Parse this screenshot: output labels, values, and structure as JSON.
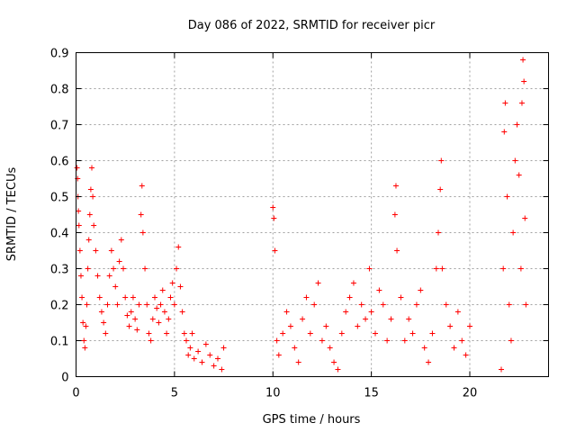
{
  "chart_data": {
    "type": "scatter",
    "title": "Day 086 of 2022, SRMTID for receiver picr",
    "xlabel": "GPS time / hours",
    "ylabel": "SRMTID / TECUs",
    "xlim": [
      0,
      24
    ],
    "ylim": [
      0,
      0.9
    ],
    "xticks": [
      0,
      5,
      10,
      15,
      20
    ],
    "xtick_labels": [
      "0",
      "5",
      "10",
      "15",
      "20"
    ],
    "yticks": [
      0,
      0.1,
      0.2,
      0.3,
      0.4,
      0.5,
      0.6,
      0.7,
      0.8,
      0.9
    ],
    "ytick_labels": [
      "0",
      "0.1",
      "0.2",
      "0.3",
      "0.4",
      "0.5",
      "0.6",
      "0.7",
      "0.8",
      "0.9"
    ],
    "grid": true,
    "marker": "+",
    "color": "#ff0000",
    "series": [
      {
        "name": "SRMTID",
        "points": [
          [
            0.05,
            0.58
          ],
          [
            0.08,
            0.55
          ],
          [
            0.1,
            0.5
          ],
          [
            0.12,
            0.46
          ],
          [
            0.15,
            0.42
          ],
          [
            0.2,
            0.35
          ],
          [
            0.25,
            0.28
          ],
          [
            0.3,
            0.22
          ],
          [
            0.35,
            0.15
          ],
          [
            0.4,
            0.1
          ],
          [
            0.45,
            0.08
          ],
          [
            0.5,
            0.14
          ],
          [
            0.55,
            0.2
          ],
          [
            0.6,
            0.3
          ],
          [
            0.65,
            0.38
          ],
          [
            0.7,
            0.45
          ],
          [
            0.75,
            0.52
          ],
          [
            0.8,
            0.58
          ],
          [
            0.85,
            0.5
          ],
          [
            0.9,
            0.42
          ],
          [
            1.0,
            0.35
          ],
          [
            1.1,
            0.28
          ],
          [
            1.2,
            0.22
          ],
          [
            1.3,
            0.18
          ],
          [
            1.4,
            0.15
          ],
          [
            1.5,
            0.12
          ],
          [
            1.6,
            0.2
          ],
          [
            1.7,
            0.28
          ],
          [
            1.8,
            0.35
          ],
          [
            1.9,
            0.3
          ],
          [
            2.0,
            0.25
          ],
          [
            2.1,
            0.2
          ],
          [
            2.2,
            0.32
          ],
          [
            2.3,
            0.38
          ],
          [
            2.4,
            0.3
          ],
          [
            2.5,
            0.22
          ],
          [
            2.6,
            0.17
          ],
          [
            2.7,
            0.14
          ],
          [
            2.8,
            0.18
          ],
          [
            2.9,
            0.22
          ],
          [
            3.0,
            0.16
          ],
          [
            3.1,
            0.13
          ],
          [
            3.2,
            0.2
          ],
          [
            3.3,
            0.45
          ],
          [
            3.35,
            0.53
          ],
          [
            3.4,
            0.4
          ],
          [
            3.5,
            0.3
          ],
          [
            3.6,
            0.2
          ],
          [
            3.7,
            0.12
          ],
          [
            3.8,
            0.1
          ],
          [
            3.9,
            0.16
          ],
          [
            4.0,
            0.22
          ],
          [
            4.1,
            0.19
          ],
          [
            4.2,
            0.15
          ],
          [
            4.3,
            0.2
          ],
          [
            4.4,
            0.24
          ],
          [
            4.5,
            0.18
          ],
          [
            4.6,
            0.12
          ],
          [
            4.7,
            0.16
          ],
          [
            4.8,
            0.22
          ],
          [
            4.9,
            0.26
          ],
          [
            5.0,
            0.2
          ],
          [
            5.1,
            0.3
          ],
          [
            5.2,
            0.36
          ],
          [
            5.3,
            0.25
          ],
          [
            5.4,
            0.18
          ],
          [
            5.5,
            0.12
          ],
          [
            5.6,
            0.1
          ],
          [
            5.7,
            0.06
          ],
          [
            5.8,
            0.08
          ],
          [
            5.9,
            0.12
          ],
          [
            6.0,
            0.05
          ],
          [
            6.2,
            0.07
          ],
          [
            6.4,
            0.04
          ],
          [
            6.6,
            0.09
          ],
          [
            6.8,
            0.06
          ],
          [
            7.0,
            0.03
          ],
          [
            7.2,
            0.05
          ],
          [
            7.4,
            0.02
          ],
          [
            7.5,
            0.08
          ],
          [
            10.0,
            0.47
          ],
          [
            10.05,
            0.44
          ],
          [
            10.1,
            0.35
          ],
          [
            10.2,
            0.1
          ],
          [
            10.3,
            0.06
          ],
          [
            10.5,
            0.12
          ],
          [
            10.7,
            0.18
          ],
          [
            10.9,
            0.14
          ],
          [
            11.1,
            0.08
          ],
          [
            11.3,
            0.04
          ],
          [
            11.5,
            0.16
          ],
          [
            11.7,
            0.22
          ],
          [
            11.9,
            0.12
          ],
          [
            12.1,
            0.2
          ],
          [
            12.3,
            0.26
          ],
          [
            12.5,
            0.1
          ],
          [
            12.7,
            0.14
          ],
          [
            12.9,
            0.08
          ],
          [
            13.1,
            0.04
          ],
          [
            13.3,
            0.02
          ],
          [
            13.5,
            0.12
          ],
          [
            13.7,
            0.18
          ],
          [
            13.9,
            0.22
          ],
          [
            14.1,
            0.26
          ],
          [
            14.3,
            0.14
          ],
          [
            14.5,
            0.2
          ],
          [
            14.7,
            0.16
          ],
          [
            14.9,
            0.3
          ],
          [
            15.0,
            0.18
          ],
          [
            15.2,
            0.12
          ],
          [
            15.4,
            0.24
          ],
          [
            15.6,
            0.2
          ],
          [
            15.8,
            0.1
          ],
          [
            16.0,
            0.16
          ],
          [
            16.2,
            0.45
          ],
          [
            16.25,
            0.53
          ],
          [
            16.3,
            0.35
          ],
          [
            16.5,
            0.22
          ],
          [
            16.7,
            0.1
          ],
          [
            16.9,
            0.16
          ],
          [
            17.1,
            0.12
          ],
          [
            17.3,
            0.2
          ],
          [
            17.5,
            0.24
          ],
          [
            17.7,
            0.08
          ],
          [
            17.9,
            0.04
          ],
          [
            18.1,
            0.12
          ],
          [
            18.3,
            0.3
          ],
          [
            18.4,
            0.4
          ],
          [
            18.5,
            0.52
          ],
          [
            18.55,
            0.6
          ],
          [
            18.6,
            0.3
          ],
          [
            18.8,
            0.2
          ],
          [
            19.0,
            0.14
          ],
          [
            19.2,
            0.08
          ],
          [
            19.4,
            0.18
          ],
          [
            19.6,
            0.1
          ],
          [
            19.8,
            0.06
          ],
          [
            20.0,
            0.14
          ],
          [
            21.6,
            0.02
          ],
          [
            21.7,
            0.3
          ],
          [
            21.75,
            0.68
          ],
          [
            21.8,
            0.76
          ],
          [
            21.9,
            0.5
          ],
          [
            22.0,
            0.2
          ],
          [
            22.1,
            0.1
          ],
          [
            22.2,
            0.4
          ],
          [
            22.3,
            0.6
          ],
          [
            22.4,
            0.7
          ],
          [
            22.5,
            0.56
          ],
          [
            22.6,
            0.3
          ],
          [
            22.65,
            0.76
          ],
          [
            22.7,
            0.88
          ],
          [
            22.75,
            0.82
          ],
          [
            22.8,
            0.44
          ],
          [
            22.85,
            0.2
          ]
        ]
      }
    ]
  }
}
